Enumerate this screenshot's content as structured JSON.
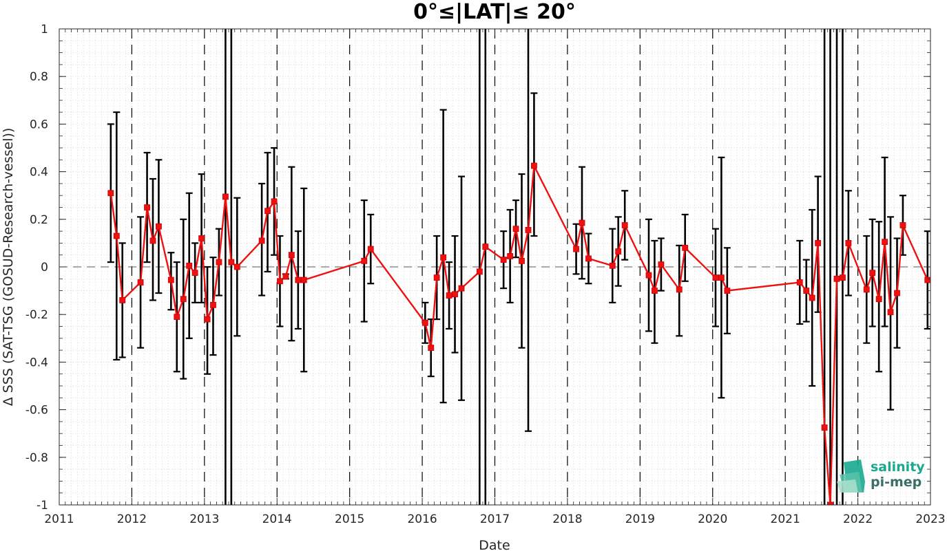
{
  "chart_data": {
    "type": "line",
    "title": "0°≤|LAT|≤ 20°",
    "xlabel": "Date",
    "ylabel": "Δ SSS (SAT-TSG (GOSUD-Research-vessel))",
    "xlim": [
      2011,
      2023
    ],
    "ylim": [
      -1,
      1
    ],
    "x_ticks": [
      "2011",
      "2012",
      "2013",
      "2014",
      "2015",
      "2016",
      "2017",
      "2018",
      "2019",
      "2020",
      "2021",
      "2022",
      "2023"
    ],
    "y_ticks": [
      "1",
      "0.8",
      "0.6",
      "0.4",
      "0.2",
      "0",
      "-0.2",
      "-0.4",
      "-0.6",
      "-0.8",
      "-1"
    ],
    "grid": "minor-dotted",
    "year_boundaries": "dashed-vertical",
    "zero_line": "dashed-horizontal",
    "series": [
      {
        "color": "#ee1111",
        "marker": "square",
        "errorbar_color": "#000000",
        "points": [
          {
            "x": 2011.71,
            "y": 0.31,
            "lo": 0.02,
            "hi": 0.6
          },
          {
            "x": 2011.79,
            "y": 0.13,
            "lo": -0.39,
            "hi": 0.65
          },
          {
            "x": 2011.87,
            "y": -0.14,
            "lo": -0.38,
            "hi": 0.1
          },
          {
            "x": 2012.12,
            "y": -0.065,
            "lo": -0.34,
            "hi": 0.21
          },
          {
            "x": 2012.21,
            "y": 0.25,
            "lo": 0.02,
            "hi": 0.48
          },
          {
            "x": 2012.29,
            "y": 0.11,
            "lo": -0.14,
            "hi": 0.37
          },
          {
            "x": 2012.37,
            "y": 0.17,
            "lo": -0.11,
            "hi": 0.45
          },
          {
            "x": 2012.54,
            "y": -0.055,
            "lo": -0.18,
            "hi": 0.06
          },
          {
            "x": 2012.62,
            "y": -0.21,
            "lo": -0.44,
            "hi": 0.02
          },
          {
            "x": 2012.71,
            "y": -0.135,
            "lo": -0.47,
            "hi": 0.2
          },
          {
            "x": 2012.79,
            "y": 0.005,
            "lo": -0.3,
            "hi": 0.31
          },
          {
            "x": 2012.87,
            "y": -0.025,
            "lo": -0.15,
            "hi": 0.1
          },
          {
            "x": 2012.96,
            "y": 0.12,
            "lo": -0.15,
            "hi": 0.39
          },
          {
            "x": 2013.04,
            "y": -0.22,
            "lo": -0.45,
            "hi": 0.0
          },
          {
            "x": 2013.12,
            "y": -0.16,
            "lo": -0.37,
            "hi": 0.04
          },
          {
            "x": 2013.2,
            "y": 0.02,
            "lo": -0.12,
            "hi": 0.16
          },
          {
            "x": 2013.29,
            "y": 0.295,
            "lo": -1.2,
            "hi": 1.2
          },
          {
            "x": 2013.37,
            "y": 0.02,
            "lo": -1.2,
            "hi": 1.2
          },
          {
            "x": 2013.45,
            "y": 0.0,
            "lo": -0.29,
            "hi": 0.29
          },
          {
            "x": 2013.79,
            "y": 0.11,
            "lo": -0.12,
            "hi": 0.35
          },
          {
            "x": 2013.87,
            "y": 0.235,
            "lo": -0.02,
            "hi": 0.48
          },
          {
            "x": 2013.96,
            "y": 0.275,
            "lo": 0.05,
            "hi": 0.5
          },
          {
            "x": 2014.04,
            "y": -0.06,
            "lo": -0.25,
            "hi": 0.13
          },
          {
            "x": 2014.12,
            "y": -0.04,
            "lo": -0.05,
            "hi": -0.03
          },
          {
            "x": 2014.2,
            "y": 0.05,
            "lo": -0.31,
            "hi": 0.42
          },
          {
            "x": 2014.29,
            "y": -0.055,
            "lo": -0.26,
            "hi": 0.15
          },
          {
            "x": 2014.37,
            "y": -0.055,
            "lo": -0.44,
            "hi": 0.33
          },
          {
            "x": 2015.2,
            "y": 0.025,
            "lo": -0.23,
            "hi": 0.28
          },
          {
            "x": 2015.29,
            "y": 0.075,
            "lo": -0.07,
            "hi": 0.22
          },
          {
            "x": 2016.04,
            "y": -0.235,
            "lo": -0.32,
            "hi": -0.15
          },
          {
            "x": 2016.12,
            "y": -0.34,
            "lo": -0.46,
            "hi": -0.22
          },
          {
            "x": 2016.2,
            "y": -0.045,
            "lo": -0.22,
            "hi": 0.13
          },
          {
            "x": 2016.29,
            "y": 0.04,
            "lo": -0.57,
            "hi": 0.66
          },
          {
            "x": 2016.37,
            "y": -0.12,
            "lo": -0.26,
            "hi": 0.02
          },
          {
            "x": 2016.45,
            "y": -0.115,
            "lo": -0.36,
            "hi": 0.13
          },
          {
            "x": 2016.54,
            "y": -0.09,
            "lo": -0.56,
            "hi": 0.38
          },
          {
            "x": 2016.79,
            "y": -0.02,
            "lo": -1.2,
            "hi": 1.2
          },
          {
            "x": 2016.87,
            "y": 0.085,
            "lo": -1.2,
            "hi": 1.2
          },
          {
            "x": 2017.12,
            "y": 0.03,
            "lo": -0.09,
            "hi": 0.15
          },
          {
            "x": 2017.21,
            "y": 0.045,
            "lo": -0.15,
            "hi": 0.24
          },
          {
            "x": 2017.29,
            "y": 0.16,
            "lo": 0.04,
            "hi": 0.28
          },
          {
            "x": 2017.37,
            "y": 0.025,
            "lo": -0.34,
            "hi": 0.39
          },
          {
            "x": 2017.46,
            "y": 0.155,
            "lo": -0.69,
            "hi": 1.01
          },
          {
            "x": 2017.54,
            "y": 0.425,
            "lo": 0.13,
            "hi": 0.73
          },
          {
            "x": 2018.12,
            "y": 0.075,
            "lo": -0.03,
            "hi": 0.18
          },
          {
            "x": 2018.2,
            "y": 0.185,
            "lo": -0.05,
            "hi": 0.42
          },
          {
            "x": 2018.29,
            "y": 0.035,
            "lo": -0.07,
            "hi": 0.14
          },
          {
            "x": 2018.62,
            "y": 0.005,
            "lo": -0.15,
            "hi": 0.16
          },
          {
            "x": 2018.7,
            "y": 0.065,
            "lo": -0.08,
            "hi": 0.21
          },
          {
            "x": 2018.79,
            "y": 0.175,
            "lo": 0.03,
            "hi": 0.32
          },
          {
            "x": 2019.12,
            "y": -0.035,
            "lo": -0.27,
            "hi": 0.2
          },
          {
            "x": 2019.2,
            "y": -0.1,
            "lo": -0.32,
            "hi": 0.11
          },
          {
            "x": 2019.29,
            "y": 0.01,
            "lo": -0.1,
            "hi": 0.12
          },
          {
            "x": 2019.54,
            "y": -0.095,
            "lo": -0.29,
            "hi": 0.09
          },
          {
            "x": 2019.62,
            "y": 0.08,
            "lo": -0.06,
            "hi": 0.22
          },
          {
            "x": 2020.04,
            "y": -0.045,
            "lo": -0.25,
            "hi": 0.16
          },
          {
            "x": 2020.12,
            "y": -0.045,
            "lo": -0.55,
            "hi": 0.46
          },
          {
            "x": 2020.2,
            "y": -0.1,
            "lo": -0.28,
            "hi": 0.08
          },
          {
            "x": 2021.2,
            "y": -0.065,
            "lo": -0.24,
            "hi": 0.11
          },
          {
            "x": 2021.29,
            "y": -0.1,
            "lo": -0.23,
            "hi": 0.03
          },
          {
            "x": 2021.37,
            "y": -0.13,
            "lo": -0.5,
            "hi": 0.24
          },
          {
            "x": 2021.45,
            "y": 0.1,
            "lo": -0.19,
            "hi": 0.38
          },
          {
            "x": 2021.54,
            "y": -0.675,
            "lo": -1.2,
            "hi": 1.2
          },
          {
            "x": 2021.62,
            "y": -1.0,
            "lo": -1.2,
            "hi": 1.2
          },
          {
            "x": 2021.71,
            "y": -0.05,
            "lo": -1.2,
            "hi": 1.2
          },
          {
            "x": 2021.79,
            "y": -0.045,
            "lo": -1.2,
            "hi": 1.2
          },
          {
            "x": 2021.87,
            "y": 0.1,
            "lo": -0.12,
            "hi": 0.32
          },
          {
            "x": 2022.12,
            "y": -0.095,
            "lo": -0.32,
            "hi": 0.13
          },
          {
            "x": 2022.2,
            "y": -0.025,
            "lo": -0.25,
            "hi": 0.2
          },
          {
            "x": 2022.29,
            "y": -0.135,
            "lo": -0.44,
            "hi": 0.19
          },
          {
            "x": 2022.37,
            "y": 0.105,
            "lo": -0.25,
            "hi": 0.46
          },
          {
            "x": 2022.45,
            "y": -0.19,
            "lo": -0.6,
            "hi": 0.21
          },
          {
            "x": 2022.54,
            "y": -0.11,
            "lo": -0.34,
            "hi": 0.12
          },
          {
            "x": 2022.62,
            "y": 0.175,
            "lo": 0.05,
            "hi": 0.3
          },
          {
            "x": 2022.96,
            "y": -0.055,
            "lo": -0.26,
            "hi": 0.15
          }
        ]
      }
    ]
  },
  "logo": {
    "line1": "salinity",
    "line2": "pi-mep",
    "color1": "#1aa88e",
    "color2": "#3a6e68"
  }
}
